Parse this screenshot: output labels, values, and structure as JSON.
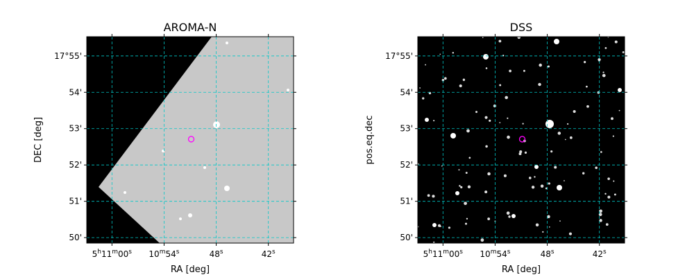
{
  "chart_data": [
    {
      "type": "image",
      "title": "AROMA-N",
      "xlabel": "RA [deg]",
      "ylabel": "DEC [deg]",
      "xlim": [
        62.9,
        39.1
      ],
      "ylim": [
        49.85,
        55.53
      ],
      "xticks": [
        {
          "value": 60,
          "label": "5h11m00s"
        },
        {
          "value": 54,
          "label": "10m54s"
        },
        {
          "value": 48,
          "label": "48s"
        },
        {
          "value": 42,
          "label": "42s"
        }
      ],
      "yticks": [
        {
          "value": 55,
          "label": "17°55'"
        },
        {
          "value": 54,
          "label": "54'"
        },
        {
          "value": 53,
          "label": "53'"
        },
        {
          "value": 52,
          "label": "52'"
        },
        {
          "value": 51,
          "label": "51'"
        },
        {
          "value": 50,
          "label": "50'"
        }
      ],
      "grid": true,
      "grid_color": "#00c8c8",
      "marker": {
        "x": 50.88,
        "y": 52.71,
        "color": "#ff00ff"
      }
    },
    {
      "type": "image",
      "title": "DSS",
      "xlabel": "RA [deg]",
      "ylabel": "pos.eq.dec",
      "xlim": [
        62.9,
        39.1
      ],
      "ylim": [
        49.85,
        55.53
      ],
      "xticks": [
        {
          "value": 60,
          "label": "5h11m00s"
        },
        {
          "value": 54,
          "label": "10m54s"
        },
        {
          "value": 48,
          "label": "48s"
        },
        {
          "value": 42,
          "label": "42s"
        }
      ],
      "yticks": [
        {
          "value": 55,
          "label": "17°55'"
        },
        {
          "value": 54,
          "label": "54'"
        },
        {
          "value": 53,
          "label": "53'"
        },
        {
          "value": 52,
          "label": "52'"
        },
        {
          "value": 51,
          "label": "51'"
        },
        {
          "value": 50,
          "label": "50'"
        }
      ],
      "grid": true,
      "grid_color": "#00c8c8",
      "marker": {
        "x": 50.88,
        "y": 52.71,
        "color": "#ff00ff"
      }
    }
  ]
}
